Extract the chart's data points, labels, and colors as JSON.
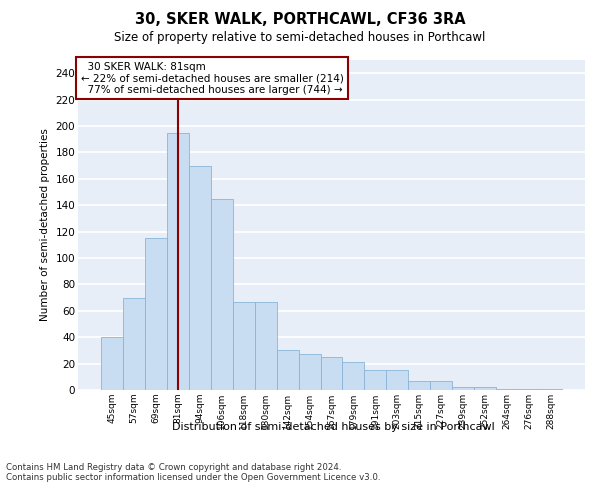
{
  "title": "30, SKER WALK, PORTHCAWL, CF36 3RA",
  "subtitle": "Size of property relative to semi-detached houses in Porthcawl",
  "xlabel": "Distribution of semi-detached houses by size in Porthcawl",
  "ylabel": "Number of semi-detached properties",
  "property_label": "30 SKER WALK: 81sqm",
  "pct_smaller": 22,
  "count_smaller": 214,
  "pct_larger": 77,
  "count_larger": 744,
  "categories": [
    "45sqm",
    "57sqm",
    "69sqm",
    "81sqm",
    "94sqm",
    "106sqm",
    "118sqm",
    "130sqm",
    "142sqm",
    "154sqm",
    "167sqm",
    "179sqm",
    "191sqm",
    "203sqm",
    "215sqm",
    "227sqm",
    "239sqm",
    "252sqm",
    "264sqm",
    "276sqm",
    "288sqm"
  ],
  "values": [
    40,
    70,
    115,
    195,
    170,
    145,
    67,
    67,
    30,
    27,
    25,
    21,
    15,
    15,
    7,
    7,
    2,
    2,
    1,
    1,
    1
  ],
  "bar_color": "#c9ddf2",
  "bar_edge_color": "#8ab4d8",
  "vline_color": "#8b0000",
  "vline_x": 3,
  "annotation_box_color": "#8b0000",
  "background_color": "#e8eef8",
  "grid_color": "#ffffff",
  "ylim": [
    0,
    250
  ],
  "yticks": [
    0,
    20,
    40,
    60,
    80,
    100,
    120,
    140,
    160,
    180,
    200,
    220,
    240
  ],
  "footer": "Contains HM Land Registry data © Crown copyright and database right 2024.\nContains public sector information licensed under the Open Government Licence v3.0."
}
